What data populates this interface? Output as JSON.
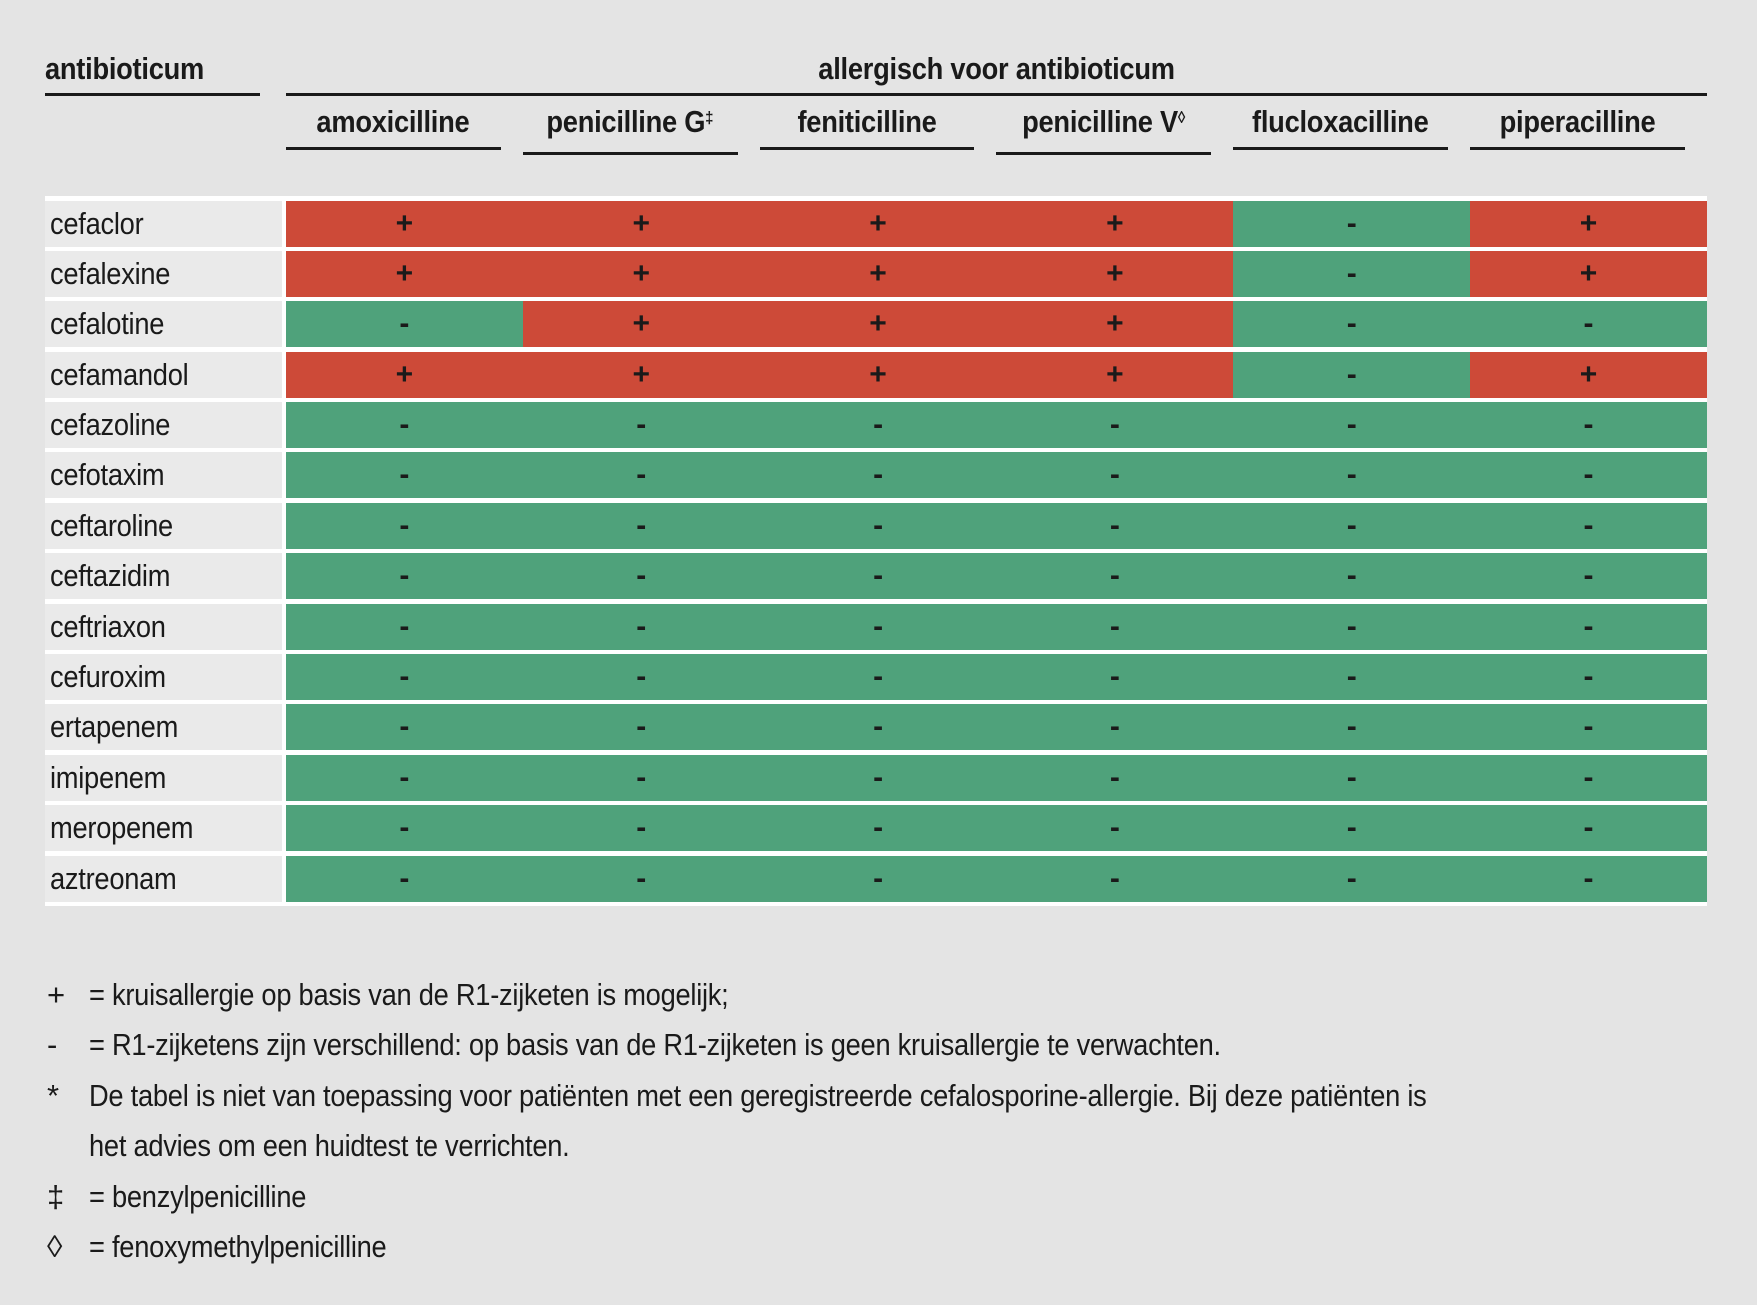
{
  "colors": {
    "positive_cell": "#cd4a38",
    "negative_cell": "#4fa27b",
    "page_background": "#e4e4e4",
    "row_label_background": "#eaeaea",
    "row_separator": "#ffffff",
    "rule_and_text": "#1a1a1a"
  },
  "table": {
    "row_header_label": "antibioticum",
    "column_group_label": "allergisch voor antibioticum",
    "columns": [
      {
        "label": "amoxicilline",
        "sup": ""
      },
      {
        "label": "penicilline G",
        "sup": "‡"
      },
      {
        "label": "feniticilline",
        "sup": ""
      },
      {
        "label": "penicilline V",
        "sup": "◊"
      },
      {
        "label": "flucloxacilline",
        "sup": ""
      },
      {
        "label": "piperacilline",
        "sup": ""
      }
    ],
    "rows": [
      {
        "label": "cefaclor",
        "values": [
          "+",
          "+",
          "+",
          "+",
          "-",
          "+"
        ]
      },
      {
        "label": "cefalexine",
        "values": [
          "+",
          "+",
          "+",
          "+",
          "-",
          "+"
        ]
      },
      {
        "label": "cefalotine",
        "values": [
          "-",
          "+",
          "+",
          "+",
          "-",
          "-"
        ]
      },
      {
        "label": "cefamandol",
        "values": [
          "+",
          "+",
          "+",
          "+",
          "-",
          "+"
        ]
      },
      {
        "label": "cefazoline",
        "values": [
          "-",
          "-",
          "-",
          "-",
          "-",
          "-"
        ]
      },
      {
        "label": "cefotaxim",
        "values": [
          "-",
          "-",
          "-",
          "-",
          "-",
          "-"
        ]
      },
      {
        "label": "ceftaroline",
        "values": [
          "-",
          "-",
          "-",
          "-",
          "-",
          "-"
        ]
      },
      {
        "label": "ceftazidim",
        "values": [
          "-",
          "-",
          "-",
          "-",
          "-",
          "-"
        ]
      },
      {
        "label": "ceftriaxon",
        "values": [
          "-",
          "-",
          "-",
          "-",
          "-",
          "-"
        ]
      },
      {
        "label": "cefuroxim",
        "values": [
          "-",
          "-",
          "-",
          "-",
          "-",
          "-"
        ]
      },
      {
        "label": "ertapenem",
        "values": [
          "-",
          "-",
          "-",
          "-",
          "-",
          "-"
        ]
      },
      {
        "label": "imipenem",
        "values": [
          "-",
          "-",
          "-",
          "-",
          "-",
          "-"
        ]
      },
      {
        "label": "meropenem",
        "values": [
          "-",
          "-",
          "-",
          "-",
          "-",
          "-"
        ]
      },
      {
        "label": "aztreonam",
        "values": [
          "-",
          "-",
          "-",
          "-",
          "-",
          "-"
        ]
      }
    ]
  },
  "footnotes": [
    {
      "symbol": "+",
      "lines": [
        "= kruisallergie op basis van de R1-zijketen is mogelijk;"
      ]
    },
    {
      "symbol": "-",
      "lines": [
        "= R1-zijketens zijn verschillend: op basis van de R1-zijketen is geen kruisallergie te verwachten."
      ]
    },
    {
      "symbol": "*",
      "lines": [
        "De tabel is niet van toepassing voor patiënten met een geregistreerde cefalosporine-allergie. Bij deze patiënten is",
        "het advies om een huidtest te verrichten."
      ]
    },
    {
      "symbol": "‡",
      "lines": [
        "= benzylpenicilline"
      ]
    },
    {
      "symbol": "◊",
      "lines": [
        "= fenoxymethylpenicilline"
      ]
    }
  ]
}
